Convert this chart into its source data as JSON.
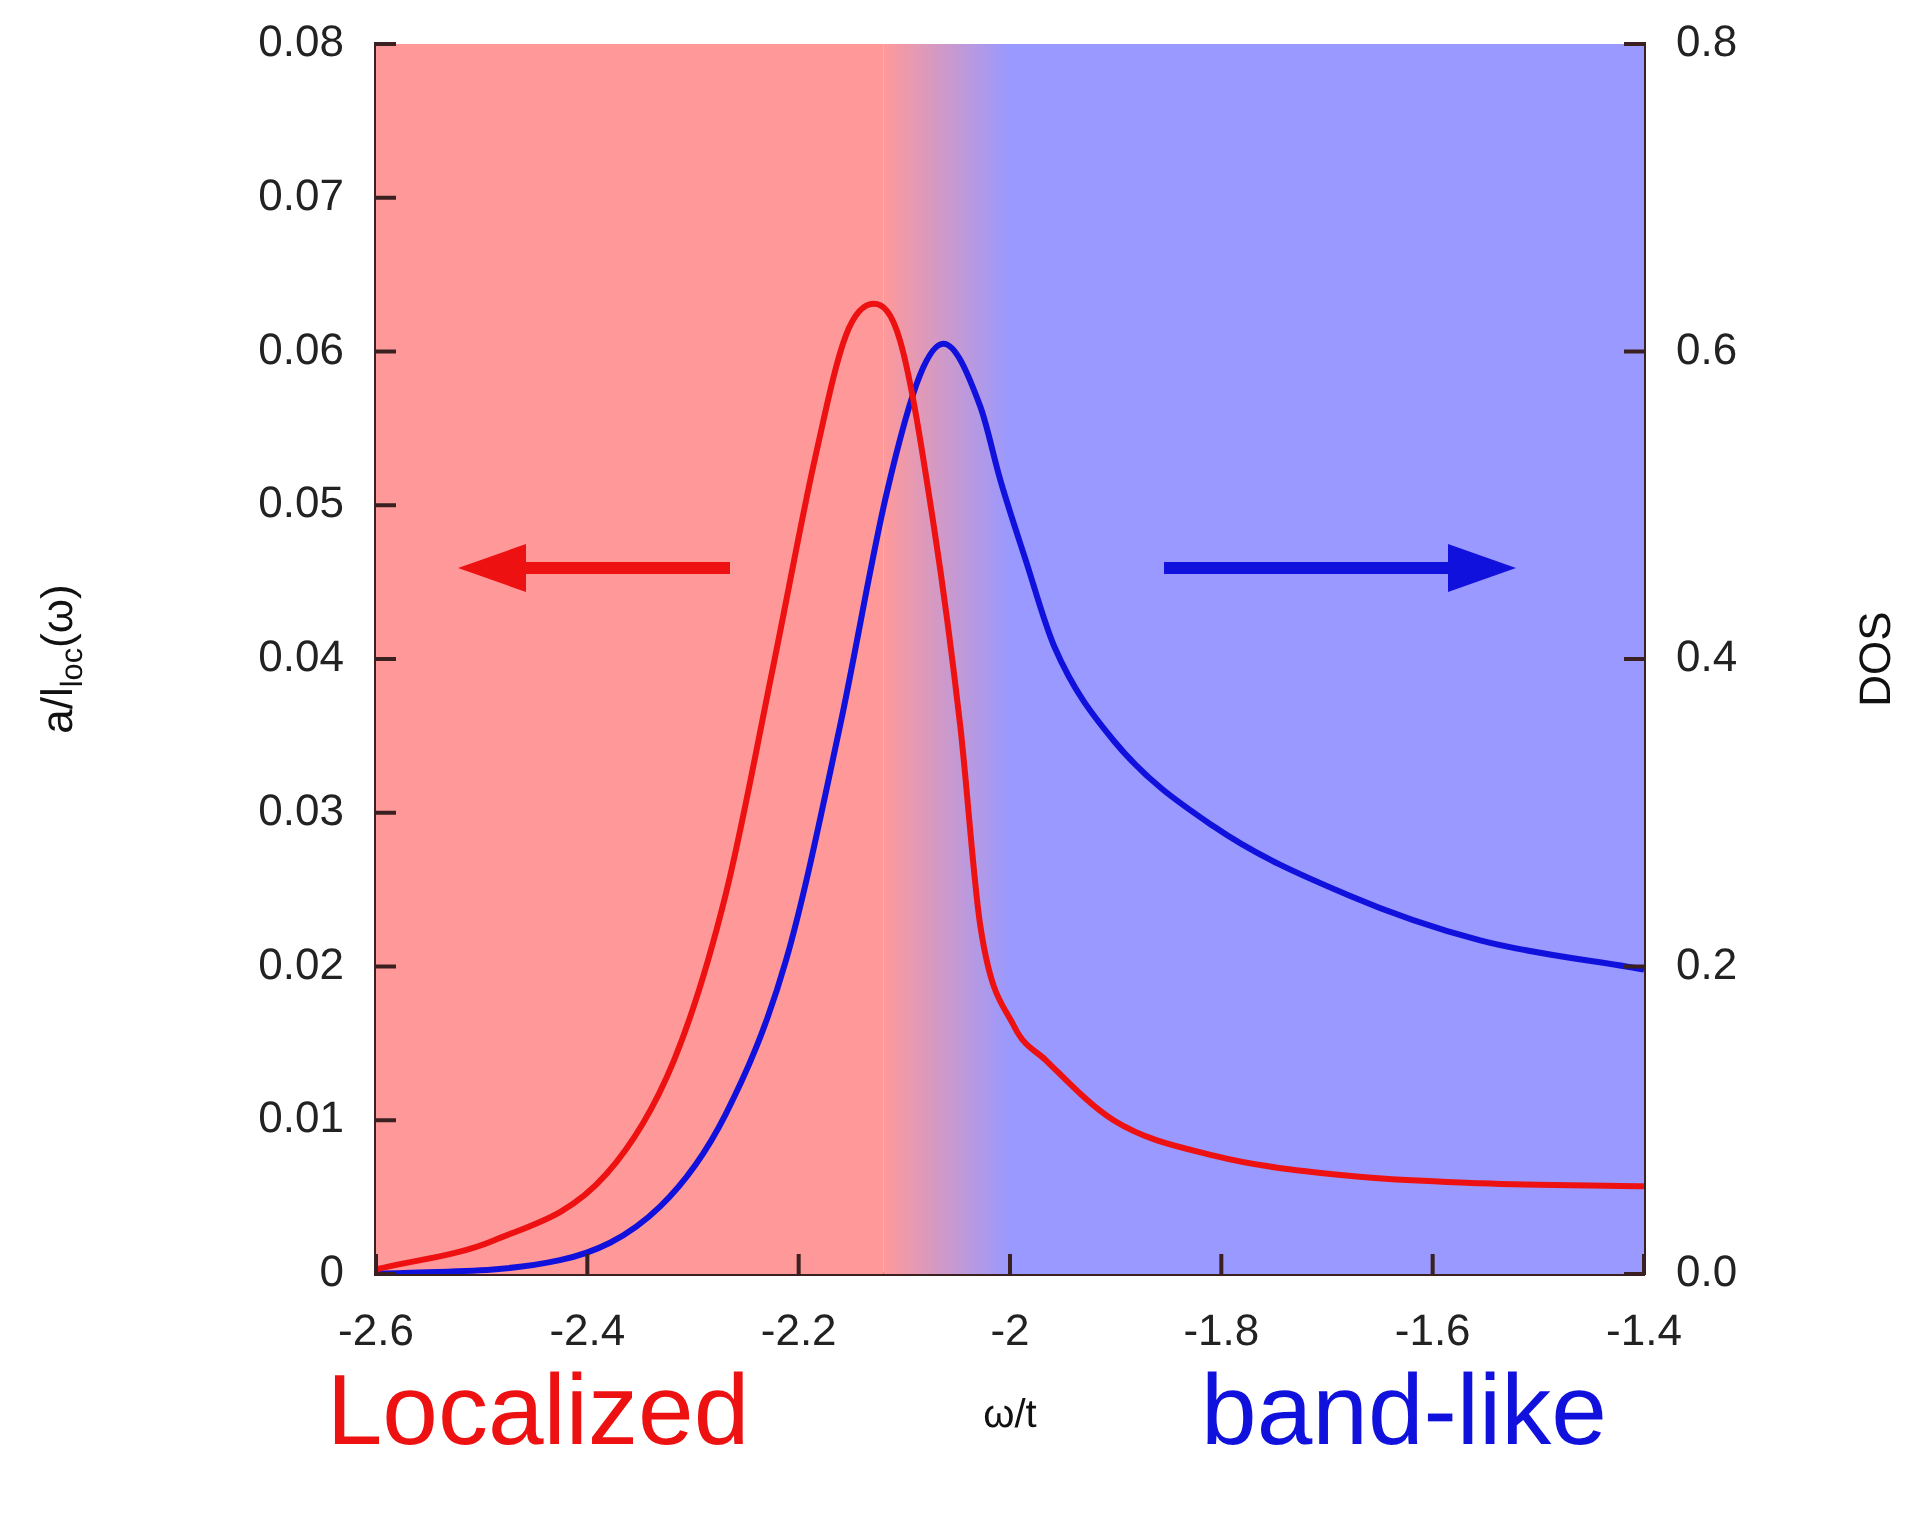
{
  "chart_data": {
    "type": "line",
    "xlabel": "ω/t",
    "ylabel": "a/l$_{loc}$(ω)",
    "y2label": "DOS",
    "xlim": [
      -2.6,
      -1.4
    ],
    "xticks": [
      -2.6,
      -2.4,
      -2.2,
      -2,
      -1.8,
      -1.6,
      -1.4
    ],
    "ylim": [
      0,
      0.08
    ],
    "yticks": [
      0,
      0.01,
      0.02,
      0.03,
      0.04,
      0.05,
      0.06,
      0.07,
      0.08
    ],
    "y2lim": [
      0,
      0.8
    ],
    "y2ticks": [
      {
        "value": 0,
        "label": "0.0"
      },
      0.2,
      0.4,
      0.6,
      0.8
    ],
    "legend": false,
    "series": [
      {
        "color": "#ee1111",
        "x": [
          -2.6,
          -2.488,
          -2.382,
          -2.318,
          -2.269,
          -2.223,
          -2.185,
          -2.155,
          -2.129,
          -2.104,
          -2.072,
          -2.047,
          -2.028,
          -1.996,
          -1.966,
          -1.902,
          -1.807,
          -1.682,
          -1.555,
          -1.4
        ],
        "values": [
          0.0003,
          0.0022,
          0.0065,
          0.0139,
          0.0247,
          0.0399,
          0.0529,
          0.0611,
          0.0631,
          0.0607,
          0.0486,
          0.0356,
          0.0226,
          0.0161,
          0.0139,
          0.01,
          0.0077,
          0.0064,
          0.0059,
          0.0057
        ]
      },
      {
        "color": "#1111dd",
        "axis": "y2",
        "x": [
          -2.6,
          -2.426,
          -2.331,
          -2.269,
          -2.212,
          -2.161,
          -2.117,
          -2.085,
          -2.063,
          -2.028,
          -2.009,
          -1.985,
          -1.958,
          -1.902,
          -1.807,
          -1.682,
          -1.555,
          -1.4
        ],
        "values": [
          0,
          0.009,
          0.044,
          0.104,
          0.204,
          0.356,
          0.507,
          0.585,
          0.605,
          0.564,
          0.516,
          0.464,
          0.408,
          0.347,
          0.291,
          0.247,
          0.217,
          0.198
        ]
      }
    ],
    "bands": [
      {
        "axis": "x",
        "from": -2.6,
        "to": -2.12,
        "color": "#ff9999"
      },
      {
        "axis": "x",
        "from": -2.12,
        "to": -2.0,
        "color": "#cc99cc"
      },
      {
        "axis": "x",
        "from": -2.0,
        "to": -1.4,
        "color": "#9999ff"
      }
    ],
    "annotations": [
      "Localized",
      "band-like"
    ]
  }
}
